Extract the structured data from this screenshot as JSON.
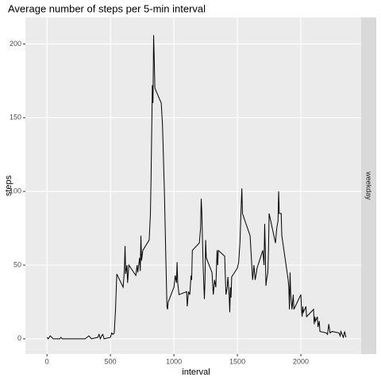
{
  "chart_data": {
    "type": "line",
    "title": "Average number of steps per 5-min interval",
    "x_label": "interval",
    "y_label": "steps",
    "facet": "weekday",
    "x": [
      0,
      10,
      25,
      50,
      100,
      110,
      120,
      200,
      250,
      300,
      330,
      350,
      400,
      410,
      420,
      430,
      440,
      450,
      500,
      510,
      520,
      530,
      540,
      550,
      600,
      610,
      615,
      620,
      630,
      635,
      645,
      700,
      710,
      715,
      730,
      735,
      740,
      745,
      755,
      805,
      815,
      820,
      830,
      835,
      840,
      845,
      850,
      900,
      910,
      925,
      935,
      945,
      950,
      955,
      1000,
      1010,
      1020,
      1025,
      1030,
      1040,
      1100,
      1105,
      1115,
      1125,
      1135,
      1140,
      1145,
      1200,
      1210,
      1215,
      1220,
      1230,
      1240,
      1245,
      1250,
      1255,
      1300,
      1310,
      1320,
      1330,
      1340,
      1345,
      1350,
      1400,
      1405,
      1410,
      1420,
      1425,
      1435,
      1440,
      1445,
      1450,
      1455,
      1500,
      1510,
      1520,
      1530,
      1535,
      1540,
      1600,
      1610,
      1620,
      1630,
      1635,
      1640,
      1650,
      1655,
      1700,
      1710,
      1715,
      1720,
      1725,
      1730,
      1740,
      1745,
      1750,
      1800,
      1810,
      1820,
      1825,
      1830,
      1845,
      1850,
      1900,
      1905,
      1910,
      1915,
      1920,
      1930,
      1935,
      1940,
      1945,
      2000,
      2005,
      2010,
      2015,
      2020,
      2030,
      2040,
      2045,
      2100,
      2105,
      2110,
      2115,
      2130,
      2135,
      2140,
      2145,
      2150,
      2200,
      2210,
      2220,
      2230,
      2245,
      2300,
      2310,
      2315,
      2330,
      2335,
      2345,
      2355
    ],
    "series": [
      {
        "name": "weekday",
        "color": "#000000",
        "values": [
          1,
          0,
          2,
          0,
          0,
          1,
          0,
          0,
          0,
          0,
          2,
          0,
          1,
          3,
          0,
          2,
          3,
          0,
          1,
          4,
          3,
          4,
          20,
          44,
          35,
          47,
          63,
          44,
          50,
          38,
          50,
          43,
          50,
          45,
          55,
          46,
          70,
          53,
          60,
          67,
          85,
          110,
          172,
          160,
          206,
          190,
          170,
          160,
          145,
          100,
          60,
          22,
          20,
          25,
          35,
          43,
          38,
          52,
          38,
          30,
          32,
          22,
          32,
          30,
          43,
          40,
          60,
          65,
          75,
          95,
          85,
          50,
          27,
          40,
          67,
          55,
          45,
          30,
          40,
          35,
          60,
          50,
          60,
          56,
          42,
          30,
          35,
          42,
          30,
          18,
          35,
          28,
          42,
          48,
          52,
          65,
          90,
          102,
          85,
          70,
          55,
          40,
          50,
          45,
          40,
          45,
          48,
          60,
          50,
          78,
          60,
          36,
          40,
          45,
          60,
          85,
          65,
          75,
          80,
          100,
          85,
          85,
          70,
          40,
          35,
          20,
          45,
          30,
          20,
          25,
          30,
          20,
          30,
          20,
          15,
          22,
          18,
          20,
          22,
          15,
          20,
          10,
          15,
          12,
          15,
          8,
          10,
          12,
          5,
          4,
          3,
          10,
          4,
          5,
          4,
          2,
          5,
          2,
          1,
          5,
          1
        ]
      }
    ],
    "xlim": [
      -170,
      2475
    ],
    "ylim": [
      -10.3,
      218
    ],
    "xticks": [
      0,
      500,
      1000,
      1500,
      2000
    ],
    "yticks": [
      0,
      50,
      100,
      150,
      200
    ],
    "grid": true
  }
}
